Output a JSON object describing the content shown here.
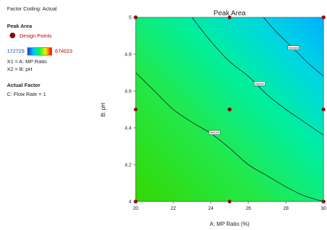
{
  "left_panel": {
    "factor_coding": "Factor Coding: Actual",
    "response_title": "Peak Area",
    "legend_label": "Design Points",
    "range_min": "172729",
    "range_max": "674023",
    "x1_label": "X1 = A: MP Ratio",
    "x2_label": "X2 = B: pH",
    "actual_factor_title": "Actual Factor",
    "actual_factor_value": "C: Flow Rate = 1"
  },
  "colors": {
    "design_point": "#8b0000",
    "contour_line": "#1a1a1a",
    "low": "#1a3fd6",
    "high": "#ff0000"
  },
  "chart_data": {
    "type": "contour",
    "title": "Peak Area",
    "xlabel": "A: MP Ratio (%)",
    "ylabel": "B: pH",
    "xlim": [
      20,
      30
    ],
    "ylim": [
      4,
      5
    ],
    "xticks": [
      "20",
      "22",
      "24",
      "26",
      "28",
      "30"
    ],
    "yticks": [
      "4",
      "4.2",
      "4.4",
      "4.6",
      "4.8",
      "5"
    ],
    "contour_labels": [
      "400000",
      "500000",
      "600000"
    ],
    "contours": [
      {
        "label": "400000",
        "label_point": [
          24.2,
          4.375
        ],
        "points": [
          [
            20,
            4.7
          ],
          [
            21,
            4.6
          ],
          [
            22,
            4.5
          ],
          [
            23,
            4.43
          ],
          [
            24,
            4.37
          ],
          [
            25,
            4.29
          ],
          [
            26,
            4.2
          ],
          [
            27,
            4.14
          ],
          [
            28,
            4.08
          ],
          [
            29,
            4.03
          ],
          [
            30,
            4.0
          ]
        ]
      },
      {
        "label": "500000",
        "label_point": [
          26.6,
          4.64
        ],
        "points": [
          [
            23,
            5.0
          ],
          [
            24,
            4.87
          ],
          [
            25,
            4.76
          ],
          [
            26,
            4.68
          ],
          [
            27,
            4.58
          ],
          [
            28,
            4.5
          ],
          [
            29,
            4.43
          ],
          [
            30,
            4.36
          ]
        ]
      },
      {
        "label": "600000",
        "label_point": [
          28.4,
          4.835
        ],
        "points": [
          [
            26.8,
            5.0
          ],
          [
            27.5,
            4.92
          ],
          [
            28,
            4.87
          ],
          [
            28.7,
            4.8
          ],
          [
            29.2,
            4.75
          ],
          [
            30,
            4.68
          ]
        ]
      }
    ],
    "design_points": [
      [
        20,
        4
      ],
      [
        20,
        5
      ],
      [
        30,
        4
      ],
      [
        30,
        5
      ],
      [
        25,
        4.5
      ]
    ],
    "edge_points": [
      [
        20,
        4.5
      ],
      [
        25,
        4
      ],
      [
        25,
        5
      ],
      [
        30,
        4.5
      ]
    ],
    "center_point": [
      25,
      4.5
    ]
  }
}
